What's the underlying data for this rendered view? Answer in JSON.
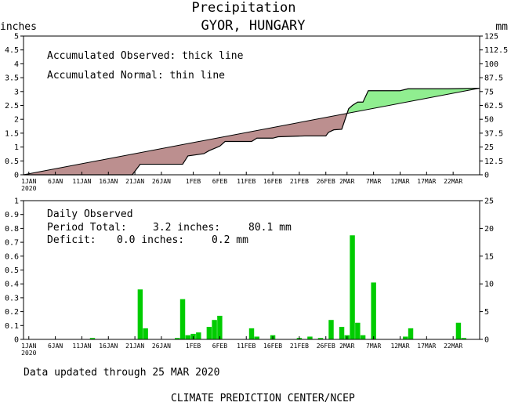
{
  "title": "Precipitation",
  "location": "GYOR, HUNGARY",
  "units": {
    "left": "inches",
    "right": "mm"
  },
  "top_annotations": [
    "Accumulated Observed: thick line",
    "Accumulated Normal: thin line"
  ],
  "daily_label": "Daily Observed",
  "period_total": {
    "label": "Period Total:",
    "inches": "3.2 inches:",
    "mm": "80.1 mm"
  },
  "deficit": {
    "label": "Deficit:",
    "inches": "0.0 inches:",
    "mm": "0.2 mm"
  },
  "updated_text": "Data updated through 25 MAR 2020",
  "credit": "CLIMATE PREDICTION CENTER/NCEP",
  "colors": {
    "surplus": "#90ee90",
    "deficit": "#bc8f8f",
    "bars": "#00cc00",
    "line": "#000000"
  },
  "chart_data": [
    {
      "type": "area",
      "name": "accumulated",
      "ylabel": "inches",
      "y2label": "mm",
      "ylim": [
        0,
        5
      ],
      "y2lim": [
        0,
        125
      ],
      "yticks": [
        "0",
        "0.5",
        "1",
        "1.5",
        "2",
        "2.5",
        "3",
        "3.5",
        "4",
        "4.5",
        "5"
      ],
      "y2ticks": [
        "0",
        "12.5",
        "25",
        "37.5",
        "50",
        "62.5",
        "75",
        "87.5",
        "100",
        "112.5",
        "125"
      ],
      "xlim": [
        1,
        86
      ],
      "xticks": [
        {
          "day": 1,
          "label": "1JAN",
          "sub": "2020"
        },
        {
          "day": 6,
          "label": "6JAN"
        },
        {
          "day": 11,
          "label": "11JAN"
        },
        {
          "day": 16,
          "label": "16JAN"
        },
        {
          "day": 21,
          "label": "21JAN"
        },
        {
          "day": 26,
          "label": "26JAN"
        },
        {
          "day": 32,
          "label": "1FEB"
        },
        {
          "day": 37,
          "label": "6FEB"
        },
        {
          "day": 42,
          "label": "11FEB"
        },
        {
          "day": 47,
          "label": "16FEB"
        },
        {
          "day": 52,
          "label": "21FEB"
        },
        {
          "day": 57,
          "label": "26FEB"
        },
        {
          "day": 61,
          "label": "2MAR"
        },
        {
          "day": 66,
          "label": "7MAR"
        },
        {
          "day": 71,
          "label": "12MAR"
        },
        {
          "day": 76,
          "label": "17MAR"
        },
        {
          "day": 81,
          "label": "22MAR"
        }
      ],
      "normal": [
        [
          0,
          0
        ],
        [
          86,
          3.12
        ]
      ],
      "observed": [
        [
          0,
          0
        ],
        [
          20.5,
          0
        ],
        [
          22,
          0.38
        ],
        [
          30,
          0.38
        ],
        [
          31,
          0.68
        ],
        [
          34,
          0.76
        ],
        [
          35,
          0.87
        ],
        [
          37,
          1.03
        ],
        [
          38,
          1.2
        ],
        [
          40,
          1.2
        ],
        [
          43,
          1.2
        ],
        [
          44,
          1.32
        ],
        [
          47,
          1.32
        ],
        [
          48,
          1.37
        ],
        [
          53,
          1.4
        ],
        [
          57,
          1.4
        ],
        [
          57.5,
          1.53
        ],
        [
          58.5,
          1.62
        ],
        [
          60,
          1.64
        ],
        [
          61.3,
          2.38
        ],
        [
          62,
          2.5
        ],
        [
          63,
          2.62
        ],
        [
          64,
          2.62
        ],
        [
          65,
          3.03
        ],
        [
          71,
          3.03
        ],
        [
          72.5,
          3.1
        ],
        [
          80,
          3.1
        ],
        [
          86,
          3.12
        ]
      ]
    },
    {
      "type": "bar",
      "name": "daily",
      "ylabel": "inches",
      "y2label": "mm",
      "ylim": [
        0,
        1
      ],
      "y2lim": [
        0,
        25
      ],
      "yticks": [
        "0",
        "0.1",
        "0.2",
        "0.3",
        "0.4",
        "0.5",
        "0.6",
        "0.7",
        "0.8",
        "0.9",
        "1"
      ],
      "y2ticks": [
        "0",
        "5",
        "10",
        "15",
        "20",
        "25"
      ],
      "xlim": [
        1,
        86
      ],
      "bars": [
        [
          13,
          0.01
        ],
        [
          22,
          0.36
        ],
        [
          23,
          0.08
        ],
        [
          29,
          0.01
        ],
        [
          30,
          0.29
        ],
        [
          31,
          0.03
        ],
        [
          32,
          0.04
        ],
        [
          33,
          0.05
        ],
        [
          35,
          0.09
        ],
        [
          36,
          0.14
        ],
        [
          37,
          0.17
        ],
        [
          43,
          0.08
        ],
        [
          44,
          0.02
        ],
        [
          47,
          0.03
        ],
        [
          52,
          0.01
        ],
        [
          54,
          0.02
        ],
        [
          56,
          0.01
        ],
        [
          58,
          0.14
        ],
        [
          60,
          0.09
        ],
        [
          61,
          0.03
        ],
        [
          62,
          0.75
        ],
        [
          63,
          0.12
        ],
        [
          64,
          0.03
        ],
        [
          66,
          0.41
        ],
        [
          72,
          0.02
        ],
        [
          73,
          0.08
        ],
        [
          82,
          0.12
        ],
        [
          83,
          0.01
        ]
      ]
    }
  ]
}
